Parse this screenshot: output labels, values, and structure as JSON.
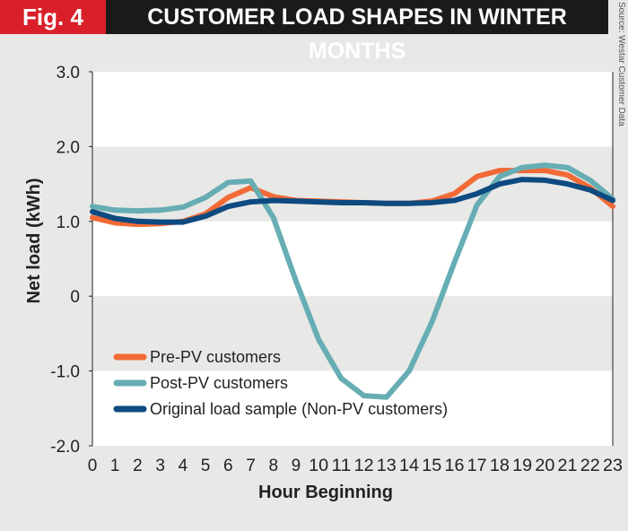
{
  "header": {
    "fig_label": "Fig. 4",
    "title": "Customer Load Shapes in Winter Months",
    "source": "Source: Westar Customer Data"
  },
  "chart_data": {
    "type": "line",
    "title": "Customer Load Shapes in Winter Months",
    "xlabel": "Hour Beginning",
    "ylabel": "Net load (kWh)",
    "x": [
      0,
      1,
      2,
      3,
      4,
      5,
      6,
      7,
      8,
      9,
      10,
      11,
      12,
      13,
      14,
      15,
      16,
      17,
      18,
      19,
      20,
      21,
      22,
      23
    ],
    "ylim": [
      -2,
      3
    ],
    "yticks": [
      "-2.0",
      "-1.0",
      "0",
      "1.0",
      "2.0",
      "3.0"
    ],
    "ytick_values": [
      -2,
      -1,
      0,
      1,
      2,
      3
    ],
    "legend_position": "bottom-left",
    "series": [
      {
        "name": "Pre-PV customers",
        "color": "#f26a35",
        "values": [
          1.05,
          0.98,
          0.96,
          0.97,
          1.0,
          1.1,
          1.32,
          1.45,
          1.33,
          1.28,
          1.27,
          1.26,
          1.25,
          1.24,
          1.24,
          1.27,
          1.37,
          1.6,
          1.68,
          1.68,
          1.68,
          1.62,
          1.45,
          1.2
        ]
      },
      {
        "name": "Post-PV customers",
        "color": "#66adb4",
        "values": [
          1.2,
          1.15,
          1.14,
          1.15,
          1.19,
          1.32,
          1.52,
          1.54,
          1.05,
          0.2,
          -0.58,
          -1.1,
          -1.33,
          -1.35,
          -1.0,
          -0.35,
          0.45,
          1.22,
          1.6,
          1.72,
          1.75,
          1.72,
          1.55,
          1.3
        ]
      },
      {
        "name": "Original load sample (Non-PV customers)",
        "color": "#0d4a80",
        "values": [
          1.13,
          1.04,
          1.0,
          0.99,
          0.99,
          1.07,
          1.2,
          1.26,
          1.28,
          1.27,
          1.26,
          1.25,
          1.25,
          1.24,
          1.24,
          1.25,
          1.28,
          1.37,
          1.5,
          1.56,
          1.55,
          1.5,
          1.42,
          1.28
        ]
      }
    ]
  }
}
